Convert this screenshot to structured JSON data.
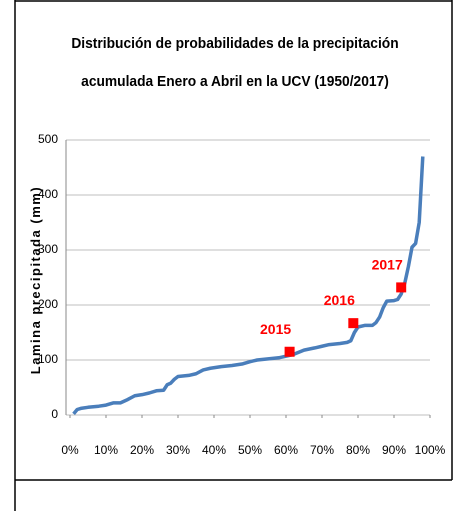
{
  "chart_data": {
    "type": "line",
    "title": [
      "Distribución de probabilidades de la precipitación",
      "acumulada Enero a Abril en la UCV (1950/2017)"
    ],
    "y_label": "Lamina  precipitada  (mm)",
    "series": [
      {
        "color": "#4a7ebb",
        "x": [
          1,
          2,
          3,
          5,
          8,
          10,
          12,
          14,
          16,
          18,
          20,
          22,
          24,
          26,
          27,
          28,
          29,
          30,
          33,
          35,
          37,
          39,
          42,
          45,
          48,
          50,
          52,
          55,
          58,
          60,
          62,
          65,
          68,
          70,
          72,
          75,
          77,
          78,
          79,
          80,
          82,
          84,
          85,
          86,
          87,
          88,
          90,
          91,
          92,
          93,
          94,
          95,
          96,
          97,
          98
        ],
        "values": [
          2,
          10,
          12,
          14,
          16,
          18,
          22,
          22,
          28,
          35,
          37,
          40,
          44,
          45,
          55,
          58,
          65,
          70,
          72,
          75,
          82,
          85,
          88,
          90,
          93,
          97,
          100,
          102,
          104,
          107,
          110,
          118,
          122,
          125,
          128,
          130,
          132,
          135,
          150,
          160,
          163,
          163,
          168,
          178,
          195,
          207,
          208,
          210,
          220,
          240,
          270,
          305,
          312,
          350,
          470
        ]
      }
    ],
    "points": [
      {
        "label": "2015",
        "x": 61,
        "y": 115,
        "color": "#ff0000"
      },
      {
        "label": "2016",
        "x": 78.7,
        "y": 167,
        "color": "#ff0000"
      },
      {
        "label": "2017",
        "x": 92,
        "y": 232,
        "color": "#ff0000"
      }
    ],
    "xlim": [
      0,
      100
    ],
    "xticks": [
      {
        "value": 0,
        "label": "0%"
      },
      {
        "value": 10,
        "label": "10%"
      },
      {
        "value": 20,
        "label": "20%"
      },
      {
        "value": 30,
        "label": "30%"
      },
      {
        "value": 40,
        "label": "40%"
      },
      {
        "value": 50,
        "label": "50%"
      },
      {
        "value": 60,
        "label": "60%"
      },
      {
        "value": 70,
        "label": "70%"
      },
      {
        "value": 80,
        "label": "80%"
      },
      {
        "value": 90,
        "label": "90%"
      },
      {
        "value": 100,
        "label": "100%"
      }
    ],
    "ylim": [
      0,
      500
    ],
    "yticks": [
      0,
      100,
      200,
      300,
      400,
      500
    ],
    "grid": true
  }
}
